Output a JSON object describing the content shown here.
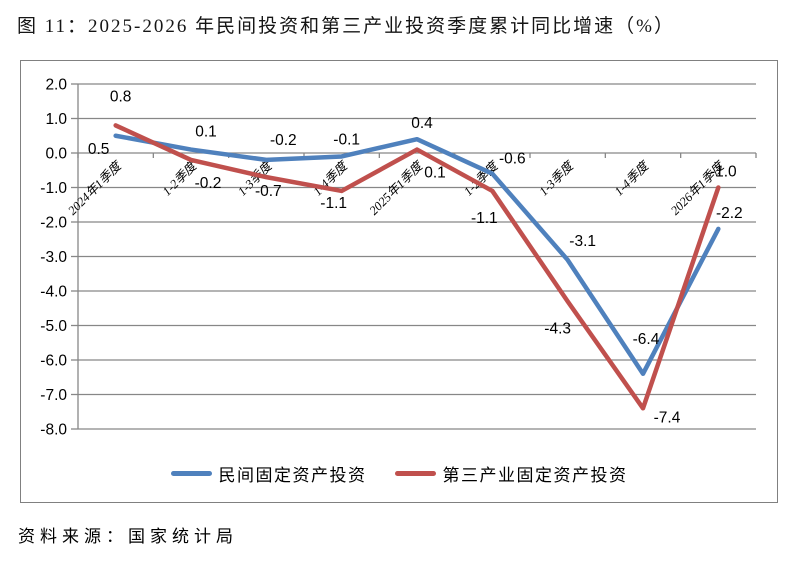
{
  "page": {
    "title": "图 11：2025-2026 年民间投资和第三产业投资季度累计同比增速（%）",
    "source_note": "资料来源：国家统计局"
  },
  "chart_data": {
    "type": "line",
    "title": "2025-2026 年民间投资和第三产业投资季度累计同比增速（%）",
    "categories": [
      "2024年1季度",
      "1-2季度",
      "1-3季度",
      "1-4季度",
      "2025年1季度",
      "1-2季度",
      "1-3季度",
      "1-4季度",
      "2026年1季度"
    ],
    "series": [
      {
        "name": "民间固定资产投资",
        "color": "#4F81BD",
        "values": [
          0.5,
          0.1,
          -0.2,
          -0.1,
          0.4,
          -0.6,
          -3.1,
          -6.4,
          -2.2
        ],
        "label_offsets": [
          [
            -17,
            18
          ],
          [
            15,
            -13
          ],
          [
            17,
            -15
          ],
          [
            5,
            -12
          ],
          [
            5,
            -11
          ],
          [
            20,
            -10
          ],
          [
            15,
            -14
          ],
          [
            3,
            -30
          ],
          [
            11,
            -11
          ]
        ]
      },
      {
        "name": "第三产业固定资产投资",
        "color": "#C0504D",
        "values": [
          0.8,
          -0.2,
          -0.7,
          -1.1,
          0.1,
          -1.1,
          -4.3,
          -7.4,
          -1.0
        ],
        "label_offsets": [
          [
            5,
            -24
          ],
          [
            17,
            28
          ],
          [
            2,
            19
          ],
          [
            -8,
            17
          ],
          [
            18,
            28
          ],
          [
            -8,
            32
          ],
          [
            -10,
            32
          ],
          [
            24,
            14
          ],
          [
            5,
            -11
          ]
        ]
      }
    ],
    "ylim": [
      -8.0,
      2.0
    ],
    "ytick_step": 1.0,
    "value_decimals": 1,
    "grid": true,
    "gridline_color": "#878787",
    "data_labels": true,
    "legend_position": "bottom",
    "xtick_rotation_deg": -45
  }
}
